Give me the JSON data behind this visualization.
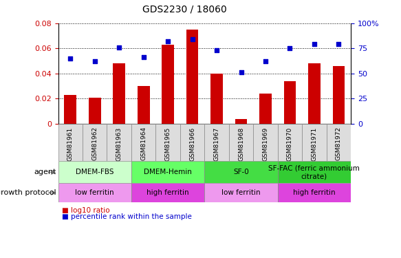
{
  "title": "GDS2230 / 18060",
  "samples": [
    "GSM81961",
    "GSM81962",
    "GSM81963",
    "GSM81964",
    "GSM81965",
    "GSM81966",
    "GSM81967",
    "GSM81968",
    "GSM81969",
    "GSM81970",
    "GSM81971",
    "GSM81972"
  ],
  "log10_ratio": [
    0.023,
    0.021,
    0.048,
    0.03,
    0.063,
    0.075,
    0.04,
    0.004,
    0.024,
    0.034,
    0.048,
    0.046
  ],
  "percentile_rank": [
    65,
    62,
    76,
    66,
    82,
    84,
    73,
    51,
    62,
    75,
    79,
    79
  ],
  "bar_color": "#cc0000",
  "dot_color": "#0000cc",
  "ylim_left": [
    0,
    0.08
  ],
  "ylim_right": [
    0,
    100
  ],
  "yticks_left": [
    0,
    0.02,
    0.04,
    0.06,
    0.08
  ],
  "yticks_right": [
    0,
    25,
    50,
    75,
    100
  ],
  "agent_groups": [
    {
      "label": "DMEM-FBS",
      "start": 0,
      "end": 3,
      "color": "#ccffcc"
    },
    {
      "label": "DMEM-Hemin",
      "start": 3,
      "end": 6,
      "color": "#66ff66"
    },
    {
      "label": "SF-0",
      "start": 6,
      "end": 9,
      "color": "#44dd44"
    },
    {
      "label": "SF-FAC (ferric ammonium\ncitrate)",
      "start": 9,
      "end": 12,
      "color": "#33cc33"
    }
  ],
  "growth_groups": [
    {
      "label": "low ferritin",
      "start": 0,
      "end": 3,
      "color": "#ee99ee"
    },
    {
      "label": "high ferritin",
      "start": 3,
      "end": 6,
      "color": "#dd44dd"
    },
    {
      "label": "low ferritin",
      "start": 6,
      "end": 9,
      "color": "#ee99ee"
    },
    {
      "label": "high ferritin",
      "start": 9,
      "end": 12,
      "color": "#dd44dd"
    }
  ],
  "agent_label": "agent",
  "growth_label": "growth protocol",
  "legend_bar_label": "log10 ratio",
  "legend_dot_label": "percentile rank within the sample",
  "bar_color_leg": "#cc0000",
  "dot_color_leg": "#0000cc",
  "xticklabel_bg": "#dddddd",
  "xticklabel_border": "#888888"
}
